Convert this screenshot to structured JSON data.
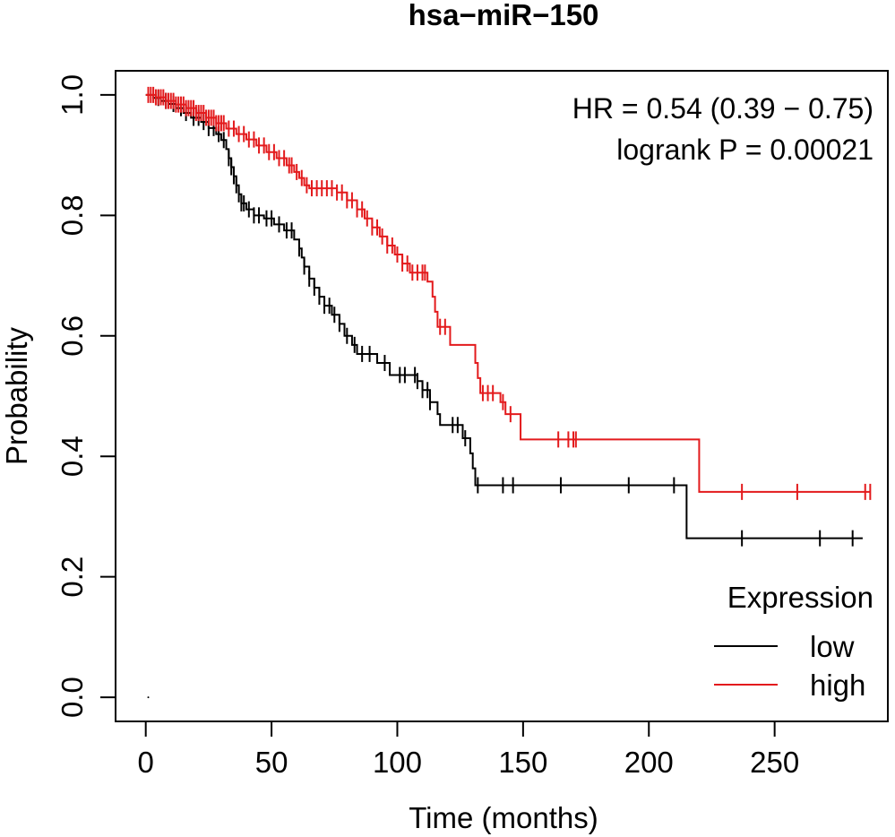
{
  "chart_data": {
    "type": "line",
    "title": "hsa−miR−150",
    "xlabel": "Time (months)",
    "ylabel": "Probability",
    "xlim": [
      -12,
      295
    ],
    "ylim": [
      -0.04,
      1.04
    ],
    "xticks": [
      0,
      50,
      100,
      150,
      200,
      250
    ],
    "yticks": [
      0.0,
      0.2,
      0.4,
      0.6,
      0.8,
      1.0
    ],
    "xtick_labels": [
      "0",
      "50",
      "100",
      "150",
      "200",
      "250"
    ],
    "ytick_labels": [
      "0.0",
      "0.2",
      "0.4",
      "0.6",
      "0.8",
      "1.0"
    ],
    "annotations": [
      "HR = 0.54 (0.39 − 0.75)",
      "logrank P = 0.00021"
    ],
    "legend": {
      "title": "Expression",
      "position": "bottom-right"
    },
    "grid": false,
    "series": [
      {
        "name": "low",
        "color": "#000000",
        "steps": [
          [
            0,
            1.0
          ],
          [
            3,
            0.995
          ],
          [
            6,
            0.99
          ],
          [
            9,
            0.985
          ],
          [
            12,
            0.978
          ],
          [
            15,
            0.97
          ],
          [
            18,
            0.962
          ],
          [
            22,
            0.955
          ],
          [
            25,
            0.945
          ],
          [
            28,
            0.935
          ],
          [
            30,
            0.925
          ],
          [
            32,
            0.91
          ],
          [
            33,
            0.895
          ],
          [
            34,
            0.88
          ],
          [
            35,
            0.865
          ],
          [
            36,
            0.85
          ],
          [
            37,
            0.835
          ],
          [
            38,
            0.82
          ],
          [
            40,
            0.81
          ],
          [
            43,
            0.8
          ],
          [
            47,
            0.795
          ],
          [
            51,
            0.785
          ],
          [
            55,
            0.775
          ],
          [
            59,
            0.76
          ],
          [
            61,
            0.745
          ],
          [
            62,
            0.73
          ],
          [
            63,
            0.715
          ],
          [
            65,
            0.695
          ],
          [
            67,
            0.68
          ],
          [
            69,
            0.665
          ],
          [
            71,
            0.65
          ],
          [
            74,
            0.635
          ],
          [
            77,
            0.62
          ],
          [
            79,
            0.6
          ],
          [
            82,
            0.585
          ],
          [
            84,
            0.57
          ],
          [
            92,
            0.555
          ],
          [
            97,
            0.535
          ],
          [
            108,
            0.525
          ],
          [
            110,
            0.51
          ],
          [
            113,
            0.49
          ],
          [
            116,
            0.47
          ],
          [
            117,
            0.452
          ],
          [
            126,
            0.43
          ],
          [
            129,
            0.405
          ],
          [
            130,
            0.38
          ],
          [
            131,
            0.352
          ],
          [
            215,
            0.264
          ]
        ],
        "end": 285,
        "censor_times": [
          5,
          8,
          11,
          14,
          16,
          19,
          21,
          23,
          25,
          27,
          29,
          31,
          33,
          34,
          35,
          36,
          37,
          38,
          39,
          41,
          43,
          45,
          48,
          50,
          53,
          56,
          58,
          61,
          63,
          65,
          67,
          69,
          71,
          73,
          75,
          77,
          80,
          83,
          86,
          89,
          95,
          101,
          103,
          107,
          108,
          110,
          112,
          113,
          122,
          124,
          127,
          132,
          142,
          146,
          165,
          192,
          210,
          237,
          268,
          281
        ]
      },
      {
        "name": "high",
        "color": "#e31a1c",
        "steps": [
          [
            0,
            1.0
          ],
          [
            4,
            0.996
          ],
          [
            8,
            0.99
          ],
          [
            12,
            0.984
          ],
          [
            16,
            0.978
          ],
          [
            20,
            0.97
          ],
          [
            24,
            0.962
          ],
          [
            28,
            0.953
          ],
          [
            32,
            0.944
          ],
          [
            36,
            0.935
          ],
          [
            40,
            0.926
          ],
          [
            44,
            0.916
          ],
          [
            48,
            0.905
          ],
          [
            52,
            0.895
          ],
          [
            56,
            0.883
          ],
          [
            59,
            0.872
          ],
          [
            61,
            0.862
          ],
          [
            63,
            0.85
          ],
          [
            65,
            0.845
          ],
          [
            76,
            0.838
          ],
          [
            80,
            0.825
          ],
          [
            84,
            0.81
          ],
          [
            87,
            0.795
          ],
          [
            90,
            0.78
          ],
          [
            93,
            0.765
          ],
          [
            96,
            0.75
          ],
          [
            99,
            0.735
          ],
          [
            102,
            0.72
          ],
          [
            105,
            0.705
          ],
          [
            112,
            0.69
          ],
          [
            114,
            0.665
          ],
          [
            115,
            0.64
          ],
          [
            116,
            0.615
          ],
          [
            121,
            0.585
          ],
          [
            131,
            0.555
          ],
          [
            132,
            0.53
          ],
          [
            133,
            0.505
          ],
          [
            141,
            0.49
          ],
          [
            143,
            0.47
          ],
          [
            149,
            0.428
          ],
          [
            220,
            0.341
          ]
        ],
        "end": 288,
        "censor_times": [
          1,
          2,
          3,
          4,
          5,
          6,
          7,
          8,
          9,
          10,
          11,
          12,
          13,
          14,
          15,
          16,
          17,
          18,
          19,
          20,
          21,
          22,
          23,
          24,
          25,
          26,
          27,
          28,
          29,
          30,
          31,
          33,
          35,
          37,
          39,
          41,
          43,
          45,
          47,
          49,
          51,
          53,
          55,
          57,
          58,
          60,
          62,
          64,
          66,
          68,
          70,
          72,
          74,
          76,
          78,
          80,
          82,
          84,
          86,
          88,
          90,
          92,
          94,
          96,
          98,
          100,
          102,
          104,
          106,
          108,
          110,
          111,
          117,
          119,
          134,
          136,
          138,
          142,
          145,
          164,
          168,
          170,
          171,
          237,
          259,
          286,
          288
        ]
      }
    ]
  }
}
